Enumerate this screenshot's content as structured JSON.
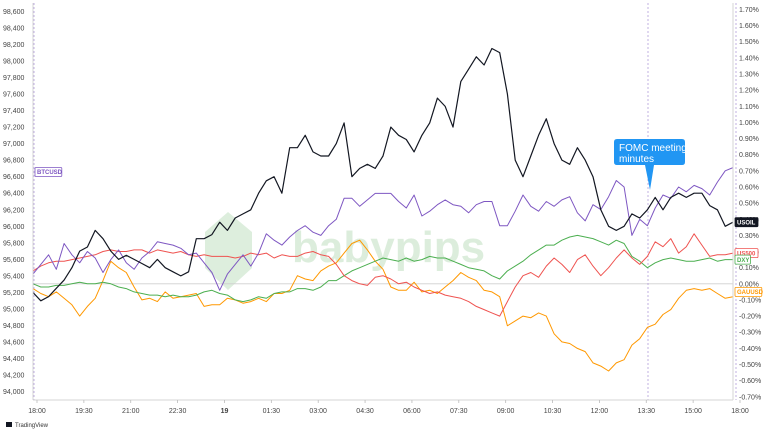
{
  "chart_data": {
    "type": "line",
    "left_axis": {
      "ticks": [
        "98,600",
        "98,400",
        "98,200",
        "98,000",
        "97,800",
        "97,600",
        "97,400",
        "97,200",
        "97,000",
        "96,800",
        "96,600",
        "96,400",
        "96,200",
        "96,000",
        "95,800",
        "95,600",
        "95,400",
        "95,200",
        "95,000",
        "94,800",
        "94,600",
        "94,400",
        "94,200",
        "94,000"
      ],
      "range": [
        93900,
        98700
      ]
    },
    "right_axis": {
      "ticks": [
        "1.70%",
        "1.60%",
        "1.50%",
        "1.40%",
        "1.30%",
        "1.20%",
        "1.10%",
        "1.00%",
        "0.90%",
        "0.80%",
        "0.70%",
        "0.60%",
        "0.50%",
        "0.40%",
        "0.30%",
        "0.20%",
        "0.10%",
        "0.00%",
        "-0.10%",
        "-0.20%",
        "-0.30%",
        "-0.40%",
        "-0.50%",
        "-0.60%",
        "-0.70%"
      ],
      "range": [
        -0.72,
        1.74
      ]
    },
    "x_axis": {
      "labels": [
        "18:00",
        "19:30",
        "21:00",
        "22:30",
        "19",
        "01:30",
        "03:00",
        "04:30",
        "06:00",
        "07:30",
        "09:00",
        "10:30",
        "12:00",
        "13:30",
        "15:00",
        "18:00"
      ],
      "bold_label": "19"
    },
    "annotation": {
      "text_line1": "FOMC meeting",
      "text_line2": "minutes",
      "color": "#2196f3"
    },
    "watermark": "babypips",
    "footer": "TradingView",
    "zero_line_value": 0.0,
    "series": [
      {
        "name": "USOIL",
        "color": "#131722",
        "axis": "left",
        "values": [
          95200,
          95100,
          95150,
          95250,
          95350,
          95500,
          95700,
          95750,
          95950,
          95850,
          95700,
          95600,
          95650,
          95600,
          95550,
          95500,
          95600,
          95500,
          95450,
          95400,
          95450,
          95850,
          95850,
          95900,
          96050,
          95950,
          96100,
          96150,
          96200,
          96400,
          96550,
          96600,
          96400,
          96950,
          96950,
          97100,
          96900,
          96850,
          96850,
          97000,
          97250,
          96600,
          96700,
          96750,
          96700,
          96850,
          97200,
          97100,
          97050,
          96900,
          97100,
          97250,
          97550,
          97450,
          97200,
          97750,
          97900,
          98050,
          97950,
          98150,
          98100,
          97600,
          96800,
          96600,
          96850,
          97100,
          97300,
          97000,
          96800,
          96750,
          96950,
          96800,
          96600,
          96200,
          96000,
          95950,
          96000,
          96150,
          96100,
          96200,
          96350,
          96200,
          96350,
          96400,
          96350,
          96400,
          96400,
          96250,
          96200,
          96000,
          96050
        ]
      },
      {
        "name": "BTCUSD",
        "color": "#7e57c2",
        "axis": "right",
        "values": [
          0.06,
          0.12,
          0.18,
          0.09,
          0.25,
          0.18,
          0.13,
          0.2,
          0.16,
          0.07,
          0.15,
          0.21,
          0.13,
          0.09,
          0.16,
          0.2,
          0.26,
          0.25,
          0.24,
          0.22,
          0.18,
          0.19,
          0.13,
          0.07,
          -0.04,
          0.06,
          0.12,
          0.18,
          0.11,
          0.19,
          0.31,
          0.27,
          0.24,
          0.29,
          0.33,
          0.36,
          0.32,
          0.3,
          0.36,
          0.4,
          0.53,
          0.53,
          0.48,
          0.52,
          0.56,
          0.56,
          0.56,
          0.51,
          0.47,
          0.55,
          0.42,
          0.45,
          0.49,
          0.52,
          0.49,
          0.48,
          0.44,
          0.49,
          0.51,
          0.51,
          0.36,
          0.36,
          0.45,
          0.55,
          0.48,
          0.45,
          0.51,
          0.48,
          0.52,
          0.54,
          0.44,
          0.39,
          0.49,
          0.46,
          0.54,
          0.64,
          0.6,
          0.3,
          0.4,
          0.36,
          0.47,
          0.55,
          0.53,
          0.6,
          0.57,
          0.61,
          0.59,
          0.55,
          0.63,
          0.7,
          0.72
        ]
      },
      {
        "name": "US500",
        "color": "#ef5350",
        "axis": "right",
        "values": [
          0.08,
          0.11,
          0.13,
          0.14,
          0.14,
          0.15,
          0.16,
          0.17,
          0.18,
          0.2,
          0.21,
          0.2,
          0.2,
          0.21,
          0.21,
          0.19,
          0.21,
          0.2,
          0.19,
          0.2,
          0.18,
          0.17,
          0.18,
          0.17,
          0.17,
          0.17,
          0.16,
          0.17,
          0.19,
          0.18,
          0.19,
          0.16,
          0.18,
          0.17,
          0.17,
          0.19,
          0.2,
          0.18,
          0.17,
          0.12,
          0.05,
          0.02,
          0.0,
          -0.01,
          0.04,
          0.05,
          0.03,
          0.0,
          0.01,
          -0.02,
          -0.04,
          -0.06,
          -0.05,
          -0.07,
          -0.08,
          -0.09,
          -0.11,
          -0.14,
          -0.16,
          -0.18,
          -0.2,
          -0.11,
          -0.02,
          0.05,
          0.07,
          0.04,
          0.11,
          0.16,
          0.12,
          0.07,
          0.15,
          0.18,
          0.11,
          0.05,
          0.1,
          0.16,
          0.21,
          0.16,
          0.12,
          0.17,
          0.26,
          0.23,
          0.28,
          0.19,
          0.23,
          0.31,
          0.24,
          0.17,
          0.18,
          0.18,
          0.19
        ]
      },
      {
        "name": "DXY",
        "color": "#4caf50",
        "axis": "right",
        "values": [
          0.0,
          -0.02,
          -0.02,
          -0.01,
          -0.01,
          0.0,
          0.01,
          0.0,
          0.0,
          0.01,
          0.0,
          -0.02,
          -0.03,
          -0.05,
          -0.06,
          -0.07,
          -0.07,
          -0.08,
          -0.07,
          -0.08,
          -0.08,
          -0.07,
          -0.05,
          -0.04,
          -0.06,
          -0.07,
          -0.1,
          -0.11,
          -0.1,
          -0.08,
          -0.09,
          -0.06,
          -0.05,
          -0.05,
          -0.03,
          -0.03,
          -0.04,
          -0.02,
          0.02,
          0.02,
          0.05,
          0.08,
          0.1,
          0.12,
          0.14,
          0.16,
          0.15,
          0.14,
          0.16,
          0.14,
          0.15,
          0.17,
          0.16,
          0.16,
          0.14,
          0.12,
          0.1,
          0.09,
          0.08,
          0.05,
          0.03,
          0.08,
          0.11,
          0.14,
          0.18,
          0.21,
          0.24,
          0.24,
          0.27,
          0.29,
          0.3,
          0.29,
          0.28,
          0.26,
          0.24,
          0.27,
          0.25,
          0.17,
          0.14,
          0.1,
          0.13,
          0.15,
          0.16,
          0.15,
          0.14,
          0.14,
          0.15,
          0.16,
          0.14,
          0.15,
          0.15
        ]
      },
      {
        "name": "GAUUSD",
        "color": "#ff9800",
        "axis": "right",
        "values": [
          -0.03,
          -0.06,
          -0.08,
          -0.05,
          -0.09,
          -0.13,
          -0.2,
          -0.14,
          -0.09,
          0.02,
          0.14,
          0.1,
          0.07,
          -0.02,
          -0.1,
          -0.09,
          -0.11,
          -0.05,
          -0.09,
          -0.08,
          -0.07,
          -0.06,
          -0.14,
          -0.13,
          -0.13,
          -0.09,
          -0.1,
          -0.12,
          -0.11,
          -0.09,
          -0.11,
          -0.06,
          -0.06,
          -0.04,
          0.05,
          0.03,
          0.02,
          0.08,
          0.11,
          0.13,
          0.19,
          0.25,
          0.27,
          0.21,
          0.14,
          0.09,
          -0.02,
          -0.04,
          -0.04,
          0.01,
          -0.05,
          -0.04,
          -0.06,
          -0.02,
          0.02,
          0.07,
          0.04,
          0.02,
          -0.04,
          -0.05,
          -0.08,
          -0.26,
          -0.23,
          -0.2,
          -0.21,
          -0.18,
          -0.2,
          -0.31,
          -0.36,
          -0.37,
          -0.4,
          -0.42,
          -0.49,
          -0.51,
          -0.54,
          -0.49,
          -0.47,
          -0.38,
          -0.34,
          -0.27,
          -0.25,
          -0.19,
          -0.16,
          -0.09,
          -0.04,
          -0.03,
          -0.04,
          -0.03,
          -0.06,
          -0.09,
          -0.08
        ]
      }
    ]
  }
}
